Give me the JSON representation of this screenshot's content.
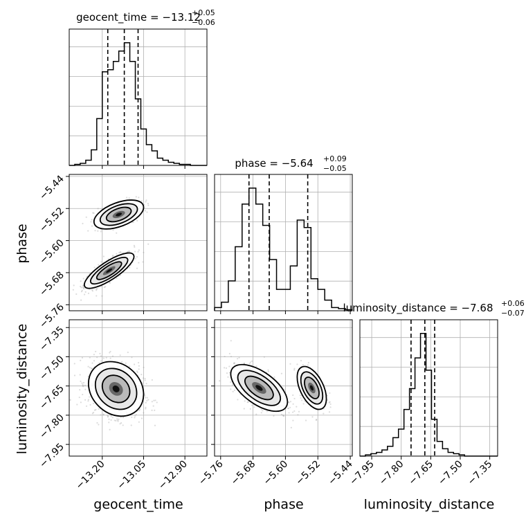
{
  "chart_data": {
    "type": "corner",
    "grid": true,
    "parameters": [
      {
        "name": "geocent_time",
        "label": "geocent_time",
        "title": "geocent_time = −13.12",
        "title_sup": "+0.05",
        "title_sub": "−0.06",
        "range": [
          -13.32,
          -12.82
        ],
        "ticks": [
          -13.2,
          -13.05,
          -12.9
        ],
        "tick_labels": [
          "−13.20",
          "−13.05",
          "−12.90"
        ],
        "quantiles": [
          -13.18,
          -13.12,
          -13.07
        ],
        "histogram": {
          "edges_start": -13.32,
          "bin_width": 0.02,
          "counts": [
            0,
            1,
            2,
            5,
            15,
            45,
            90,
            92,
            100,
            110,
            118,
            100,
            64,
            35,
            20,
            14,
            7,
            5,
            3,
            2,
            1,
            1,
            0,
            0,
            0
          ]
        }
      },
      {
        "name": "phase",
        "label": "phase",
        "title": "phase = −5.64",
        "title_sup": "+0.09",
        "title_sub": "−0.05",
        "range": [
          -5.775,
          -5.435
        ],
        "ticks": [
          -5.76,
          -5.68,
          -5.6,
          -5.52,
          -5.44
        ],
        "tick_labels": [
          "−5.76",
          "−5.68",
          "−5.60",
          "−5.52",
          "−5.44"
        ],
        "quantiles": [
          -5.69,
          -5.64,
          -5.545
        ],
        "histogram": {
          "edges_start": -5.775,
          "bin_width": 0.017,
          "counts": [
            3,
            8,
            28,
            60,
            100,
            115,
            100,
            80,
            48,
            20,
            20,
            42,
            85,
            78,
            30,
            20,
            10,
            3,
            2,
            1
          ]
        }
      },
      {
        "name": "luminosity_distance",
        "label": "luminosity_distance",
        "title": "luminosity_distance = −7.68",
        "title_sup": "+0.06",
        "title_sub": "−0.07",
        "range": [
          -8.01,
          -7.31
        ],
        "ticks": [
          -7.95,
          -7.8,
          -7.65,
          -7.5,
          -7.35
        ],
        "tick_labels": [
          "−7.95",
          "−7.80",
          "−7.65",
          "−7.50",
          "−7.35"
        ],
        "quantiles": [
          -7.75,
          -7.68,
          -7.63
        ],
        "histogram": {
          "edges_start": -8.01,
          "bin_width": 0.028,
          "counts": [
            0,
            1,
            2,
            3,
            5,
            8,
            15,
            22,
            38,
            55,
            80,
            100,
            70,
            30,
            12,
            6,
            3,
            2,
            1,
            0,
            0,
            0,
            0,
            0,
            0
          ]
        }
      }
    ],
    "pairs": [
      {
        "x": "geocent_time",
        "y": "phase",
        "modes": [
          {
            "mean": [
              -13.175,
              -5.675
            ],
            "sd": [
              0.045,
              0.022
            ],
            "rho": 0.8,
            "weight": 0.7
          },
          {
            "mean": [
              -13.14,
              -5.535
            ],
            "sd": [
              0.045,
              0.018
            ],
            "rho": 0.5,
            "weight": 0.3
          }
        ]
      },
      {
        "x": "geocent_time",
        "y": "luminosity_distance",
        "modes": [
          {
            "mean": [
              -13.15,
              -7.665
            ],
            "sd": [
              0.05,
              0.07
            ],
            "rho": -0.2,
            "weight": 1.0
          }
        ]
      },
      {
        "x": "phase",
        "y": "luminosity_distance",
        "modes": [
          {
            "mean": [
              -5.665,
              -7.66
            ],
            "sd": [
              0.035,
              0.06
            ],
            "rho": -0.6,
            "weight": 0.7
          },
          {
            "mean": [
              -5.535,
              -7.66
            ],
            "sd": [
              0.018,
              0.055
            ],
            "rho": -0.5,
            "weight": 0.3
          }
        ]
      }
    ]
  }
}
